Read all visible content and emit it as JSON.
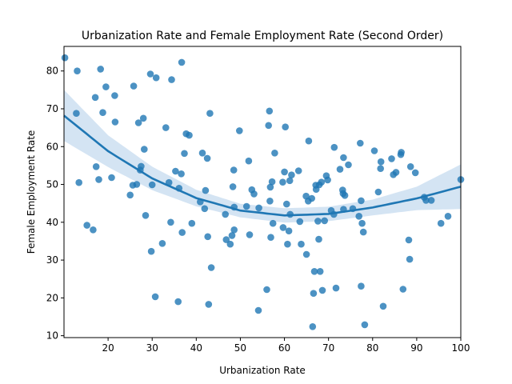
{
  "chart_data": {
    "type": "scatter",
    "title": "Urbanization Rate and Female Employment Rate (Second Order)",
    "xlabel": "Urbanization Rate",
    "ylabel": "Female Employment Rate",
    "xlim": [
      10,
      100
    ],
    "ylim": [
      9.5,
      86.5
    ],
    "xticks": [
      20,
      30,
      40,
      50,
      60,
      70,
      80,
      90,
      100
    ],
    "yticks": [
      10,
      20,
      30,
      40,
      50,
      60,
      70,
      80
    ],
    "grid": false,
    "colors": {
      "points": "#1f77b4",
      "line": "#1f77b4",
      "band": "#c6dbef"
    },
    "points": [
      [
        10.2,
        83.5
      ],
      [
        12.8,
        68.8
      ],
      [
        13.0,
        80.0
      ],
      [
        13.4,
        50.5
      ],
      [
        15.2,
        39.2
      ],
      [
        16.6,
        38.0
      ],
      [
        17.1,
        73.0
      ],
      [
        17.3,
        54.7
      ],
      [
        17.9,
        51.3
      ],
      [
        18.3,
        80.5
      ],
      [
        18.8,
        69.0
      ],
      [
        19.5,
        75.8
      ],
      [
        20.8,
        51.8
      ],
      [
        21.5,
        73.5
      ],
      [
        21.6,
        66.5
      ],
      [
        25.0,
        47.2
      ],
      [
        25.6,
        49.8
      ],
      [
        25.8,
        76.0
      ],
      [
        26.5,
        50.0
      ],
      [
        26.9,
        66.3
      ],
      [
        27.3,
        53.8
      ],
      [
        27.5,
        54.8
      ],
      [
        28.0,
        67.5
      ],
      [
        28.2,
        59.3
      ],
      [
        28.5,
        41.8
      ],
      [
        29.6,
        79.2
      ],
      [
        29.8,
        32.3
      ],
      [
        30.0,
        49.9
      ],
      [
        30.7,
        20.3
      ],
      [
        30.9,
        78.2
      ],
      [
        32.3,
        34.4
      ],
      [
        33.1,
        65.0
      ],
      [
        33.8,
        50.5
      ],
      [
        34.2,
        40.0
      ],
      [
        34.4,
        77.7
      ],
      [
        35.3,
        53.5
      ],
      [
        35.9,
        19.0
      ],
      [
        36.1,
        49.0
      ],
      [
        36.6,
        52.8
      ],
      [
        36.7,
        82.3
      ],
      [
        36.8,
        37.3
      ],
      [
        37.3,
        58.2
      ],
      [
        37.7,
        63.4
      ],
      [
        38.4,
        63.0
      ],
      [
        39.0,
        39.7
      ],
      [
        40.9,
        45.4
      ],
      [
        41.4,
        58.3
      ],
      [
        41.9,
        43.6
      ],
      [
        42.1,
        48.4
      ],
      [
        42.5,
        56.9
      ],
      [
        42.6,
        36.2
      ],
      [
        42.8,
        18.3
      ],
      [
        43.1,
        68.8
      ],
      [
        43.4,
        28.0
      ],
      [
        46.6,
        42.1
      ],
      [
        46.8,
        35.4
      ],
      [
        47.7,
        34.2
      ],
      [
        48.1,
        36.5
      ],
      [
        48.3,
        49.4
      ],
      [
        48.5,
        53.8
      ],
      [
        48.6,
        44.0
      ],
      [
        48.6,
        38.0
      ],
      [
        49.8,
        64.2
      ],
      [
        51.4,
        44.2
      ],
      [
        51.9,
        56.2
      ],
      [
        52.1,
        36.7
      ],
      [
        52.6,
        48.6
      ],
      [
        53.1,
        47.5
      ],
      [
        54.2,
        43.8
      ],
      [
        54.1,
        16.7
      ],
      [
        56.0,
        22.2
      ],
      [
        56.4,
        65.6
      ],
      [
        56.6,
        69.4
      ],
      [
        56.8,
        49.3
      ],
      [
        56.7,
        45.6
      ],
      [
        56.9,
        36.0
      ],
      [
        57.2,
        50.7
      ],
      [
        57.4,
        39.7
      ],
      [
        57.8,
        58.3
      ],
      [
        59.6,
        50.6
      ],
      [
        59.7,
        38.6
      ],
      [
        60.0,
        53.3
      ],
      [
        60.2,
        65.2
      ],
      [
        60.5,
        44.8
      ],
      [
        60.7,
        34.2
      ],
      [
        61.0,
        37.7
      ],
      [
        61.2,
        51.0
      ],
      [
        61.3,
        42.1
      ],
      [
        61.6,
        52.5
      ],
      [
        63.2,
        53.6
      ],
      [
        63.5,
        40.2
      ],
      [
        63.8,
        34.2
      ],
      [
        64.9,
        46.9
      ],
      [
        65.0,
        31.5
      ],
      [
        65.4,
        45.6
      ],
      [
        65.5,
        61.5
      ],
      [
        66.2,
        46.3
      ],
      [
        66.4,
        12.4
      ],
      [
        66.6,
        21.2
      ],
      [
        66.8,
        27.0
      ],
      [
        67.1,
        49.8
      ],
      [
        67.2,
        48.7
      ],
      [
        67.6,
        40.3
      ],
      [
        67.8,
        35.5
      ],
      [
        67.9,
        49.9
      ],
      [
        68.1,
        27.0
      ],
      [
        68.4,
        50.6
      ],
      [
        68.6,
        22.0
      ],
      [
        69.1,
        40.4
      ],
      [
        69.5,
        52.3
      ],
      [
        69.8,
        51.2
      ],
      [
        70.6,
        43.1
      ],
      [
        71.2,
        42.1
      ],
      [
        71.3,
        59.8
      ],
      [
        71.7,
        22.6
      ],
      [
        72.6,
        54.0
      ],
      [
        73.2,
        48.5
      ],
      [
        73.3,
        47.6
      ],
      [
        73.4,
        57.1
      ],
      [
        73.4,
        43.4
      ],
      [
        73.7,
        47.1
      ],
      [
        74.5,
        55.2
      ],
      [
        75.5,
        43.6
      ],
      [
        76.9,
        41.6
      ],
      [
        77.2,
        60.9
      ],
      [
        77.4,
        45.7
      ],
      [
        77.4,
        23.1
      ],
      [
        77.6,
        39.7
      ],
      [
        77.9,
        37.4
      ],
      [
        78.2,
        12.9
      ],
      [
        80.4,
        58.9
      ],
      [
        81.3,
        48.0
      ],
      [
        81.8,
        54.2
      ],
      [
        81.9,
        56.0
      ],
      [
        82.4,
        17.8
      ],
      [
        84.3,
        56.8
      ],
      [
        84.7,
        52.6
      ],
      [
        85.3,
        53.2
      ],
      [
        86.4,
        57.9
      ],
      [
        86.5,
        58.5
      ],
      [
        86.9,
        22.3
      ],
      [
        88.2,
        35.3
      ],
      [
        88.4,
        30.2
      ],
      [
        88.6,
        54.7
      ],
      [
        89.7,
        53.1
      ],
      [
        91.7,
        46.6
      ],
      [
        92.1,
        45.8
      ],
      [
        93.3,
        45.8
      ],
      [
        95.5,
        39.7
      ],
      [
        97.1,
        41.6
      ],
      [
        100.0,
        51.3
      ]
    ],
    "trend": {
      "x": [
        10,
        20,
        30,
        40,
        50,
        60,
        70,
        80,
        90,
        100
      ],
      "y": [
        68.2,
        58.8,
        51.6,
        46.4,
        43.1,
        41.8,
        42.2,
        43.9,
        46.3,
        49.4
      ],
      "lower": [
        61.5,
        54.6,
        48.5,
        44.2,
        41.3,
        39.9,
        40.3,
        41.8,
        43.2,
        43.5
      ],
      "upper": [
        75.0,
        63.0,
        54.7,
        48.6,
        44.9,
        43.7,
        44.1,
        46.0,
        49.4,
        55.3
      ]
    }
  }
}
